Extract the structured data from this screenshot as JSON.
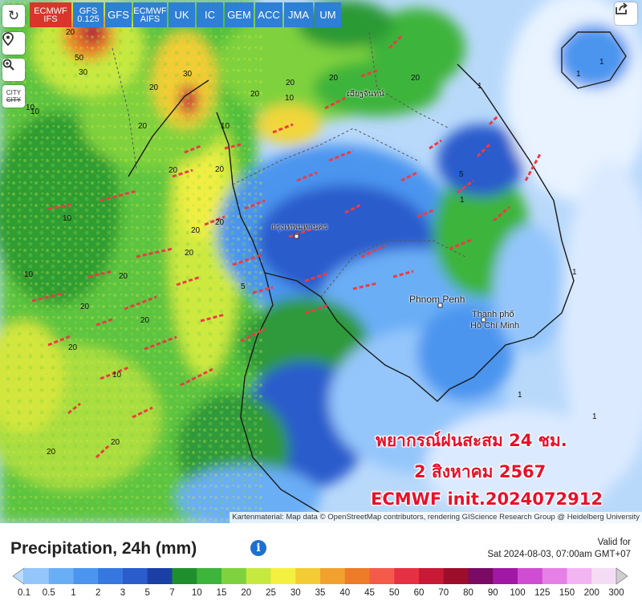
{
  "models": [
    {
      "label": "ECMWF\nIFS",
      "active": true
    },
    {
      "label": "GFS\n0.125",
      "active": false
    },
    {
      "label": "GFS",
      "active": false
    },
    {
      "label": "ECMWF\nAIFS",
      "active": false
    },
    {
      "label": "UK",
      "active": false
    },
    {
      "label": "IC",
      "active": false
    },
    {
      "label": "GEM",
      "active": false
    },
    {
      "label": "ACC",
      "active": false
    },
    {
      "label": "JMA",
      "active": false
    },
    {
      "label": "UM",
      "active": false
    }
  ],
  "tools": {
    "refresh_icon": "↻",
    "location_icon": "⌖",
    "zoom_icon": "⌕",
    "city_label": "CITY",
    "city_strike": "CITY"
  },
  "attribution": "Kartenmaterial: Map data © OpenStreetMap contributors, rendering GIScience Research Group @ Heidelberg University",
  "overlay": {
    "line1": "พยากรณ์ฝนสะสม 24 ชม.",
    "line2": "2 สิงหาคม 2567",
    "line3": "ECMWF init.2024072912"
  },
  "places": {
    "phnom_penh": "Phnom Penh",
    "hcm_1": "Thành phố",
    "hcm_2": "Hồ Chí Minh",
    "bangkok": "กรุงเทพมหานคร",
    "vientiane": "ເວียງจันทน์"
  },
  "map_values": [
    "20",
    "10",
    "30",
    "50",
    "20",
    "20",
    "30",
    "20",
    "10",
    "10",
    "20",
    "20",
    "20",
    "20",
    "20",
    "20",
    "10",
    "20",
    "20",
    "20",
    "20",
    "10",
    "20",
    "20",
    "20",
    "10",
    "10",
    "20",
    "1",
    "1",
    "1",
    "1",
    "1",
    "1",
    "1",
    "1",
    "5",
    "5"
  ],
  "legend": {
    "title": "Precipitation, 24h (mm)",
    "info": "i",
    "valid_for": "Valid for",
    "valid_time": "Sat 2024-08-03, 07:00am GMT+07",
    "ticks": [
      "0.1",
      "0.5",
      "1",
      "2",
      "3",
      "5",
      "7",
      "10",
      "15",
      "20",
      "25",
      "30",
      "35",
      "40",
      "45",
      "50",
      "60",
      "70",
      "80",
      "90",
      "100",
      "125",
      "150",
      "200",
      "300"
    ],
    "colors": [
      "#bcdcff",
      "#94c6fb",
      "#6aaef6",
      "#4b95ef",
      "#3678e0",
      "#2a5ccc",
      "#1b3fa5",
      "#1f8f2e",
      "#3db43a",
      "#7fd23e",
      "#c6e940",
      "#f4f03f",
      "#f3cc35",
      "#f2a12f",
      "#ee7b28",
      "#f45a4a",
      "#e63043",
      "#c81937",
      "#9c0e2b",
      "#7a0a63",
      "#a018a4",
      "#d04cd2",
      "#e680e6",
      "#f2b5f2",
      "#f5dcf5",
      "#cfcfcf"
    ]
  }
}
